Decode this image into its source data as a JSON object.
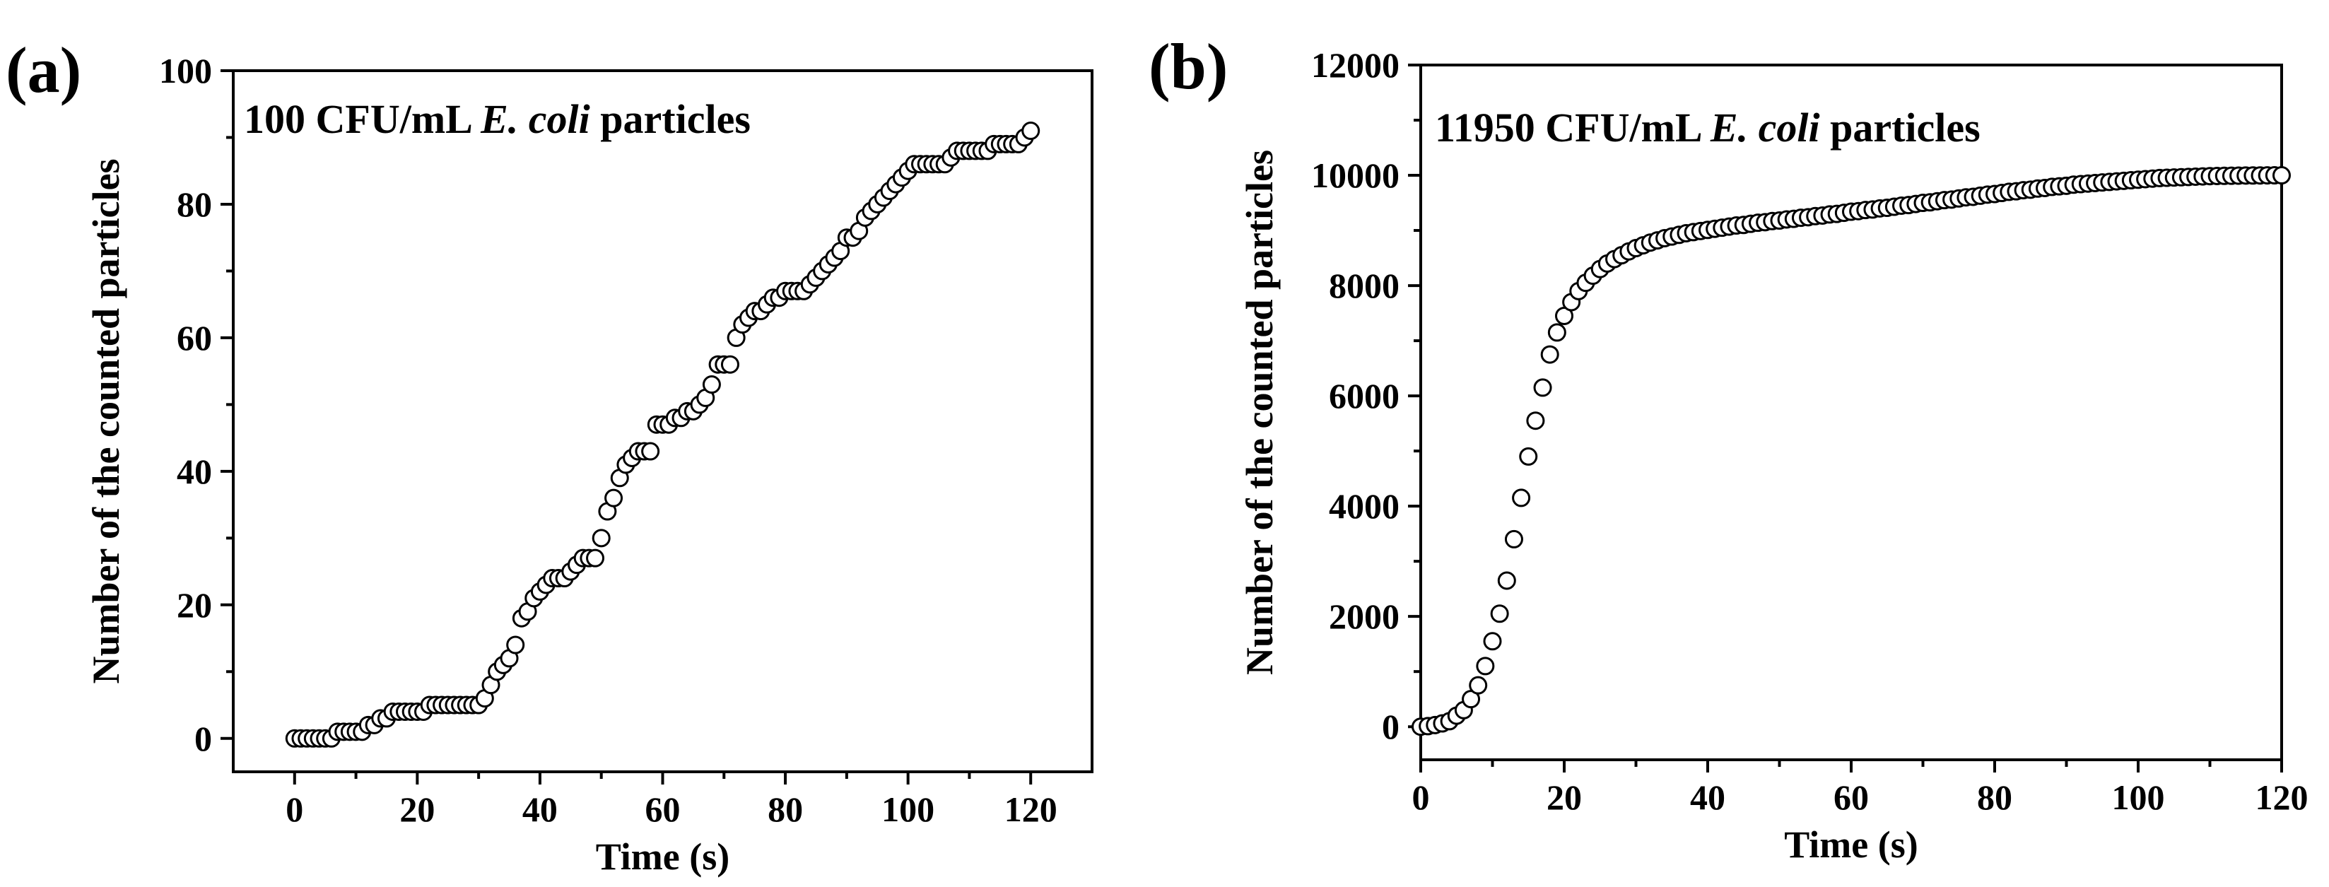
{
  "chart_data": [
    {
      "type": "scatter",
      "panel_label": "(a)",
      "annotation": {
        "prefix": "100 CFU/mL ",
        "italic": "E. coli",
        "suffix": " particles"
      },
      "xlabel": "Time (s)",
      "ylabel": "Number of the counted particles",
      "xlim": [
        -10,
        130
      ],
      "ylim": [
        -5,
        100
      ],
      "xticks": [
        0,
        20,
        40,
        60,
        80,
        100,
        120
      ],
      "yticks": [
        0,
        20,
        40,
        60,
        80,
        100
      ],
      "xtick_labels": [
        "0",
        "20",
        "40",
        "60",
        "80",
        "100",
        "120"
      ],
      "ytick_labels": [
        "0",
        "20",
        "40",
        "60",
        "80",
        "100"
      ],
      "x": [
        0,
        1,
        2,
        3,
        4,
        5,
        6,
        7,
        8,
        9,
        10,
        11,
        12,
        13,
        14,
        15,
        16,
        17,
        18,
        19,
        20,
        21,
        22,
        23,
        24,
        25,
        26,
        27,
        28,
        29,
        30,
        31,
        32,
        33,
        34,
        35,
        36,
        37,
        38,
        39,
        40,
        41,
        42,
        43,
        44,
        45,
        46,
        47,
        48,
        49,
        50,
        51,
        52,
        53,
        54,
        55,
        56,
        57,
        58,
        59,
        60,
        61,
        62,
        63,
        64,
        65,
        66,
        67,
        68,
        69,
        70,
        71,
        72,
        73,
        74,
        75,
        76,
        77,
        78,
        79,
        80,
        81,
        82,
        83,
        84,
        85,
        86,
        87,
        88,
        89,
        90,
        91,
        92,
        93,
        94,
        95,
        96,
        97,
        98,
        99,
        100,
        101,
        102,
        103,
        104,
        105,
        106,
        107,
        108,
        109,
        110,
        111,
        112,
        113,
        114,
        115,
        116,
        117,
        118,
        119,
        120
      ],
      "y": [
        0,
        0,
        0,
        0,
        0,
        0,
        0,
        1,
        1,
        1,
        1,
        1,
        2,
        2,
        3,
        3,
        4,
        4,
        4,
        4,
        4,
        4,
        5,
        5,
        5,
        5,
        5,
        5,
        5,
        5,
        5,
        6,
        8,
        10,
        11,
        12,
        14,
        18,
        19,
        21,
        22,
        23,
        24,
        24,
        24,
        25,
        26,
        27,
        27,
        27,
        30,
        34,
        36,
        39,
        41,
        42,
        43,
        43,
        43,
        47,
        47,
        47,
        48,
        48,
        49,
        49,
        50,
        51,
        53,
        56,
        56,
        56,
        60,
        62,
        63,
        64,
        64,
        65,
        66,
        66,
        67,
        67,
        67,
        67,
        68,
        69,
        70,
        71,
        72,
        73,
        75,
        75,
        76,
        78,
        79,
        80,
        81,
        82,
        83,
        84,
        85,
        86,
        86,
        86,
        86,
        86,
        86,
        87,
        88,
        88,
        88,
        88,
        88,
        88,
        89,
        89,
        89,
        89,
        89,
        90,
        91
      ]
    },
    {
      "type": "scatter",
      "panel_label": "(b)",
      "annotation": {
        "prefix": "11950 CFU/mL ",
        "italic": "E. coli",
        "suffix": " particles"
      },
      "xlabel": "Time (s)",
      "ylabel": "Number of the counted particles",
      "xlim": [
        0,
        120
      ],
      "ylim": [
        -600,
        12000
      ],
      "xticks": [
        0,
        20,
        40,
        60,
        80,
        100,
        120
      ],
      "yticks": [
        0,
        2000,
        4000,
        6000,
        8000,
        10000,
        12000
      ],
      "xtick_labels": [
        "0",
        "20",
        "40",
        "60",
        "80",
        "100",
        "120"
      ],
      "ytick_labels": [
        "0",
        "2000",
        "4000",
        "6000",
        "8000",
        "10000",
        "12000"
      ],
      "x": [
        0,
        1,
        2,
        3,
        4,
        5,
        6,
        7,
        8,
        9,
        10,
        11,
        12,
        13,
        14,
        15,
        16,
        17,
        18,
        19,
        20,
        21,
        22,
        23,
        24,
        25,
        26,
        27,
        28,
        29,
        30,
        31,
        32,
        33,
        34,
        35,
        36,
        37,
        38,
        39,
        40,
        41,
        42,
        43,
        44,
        45,
        46,
        47,
        48,
        49,
        50,
        51,
        52,
        53,
        54,
        55,
        56,
        57,
        58,
        59,
        60,
        61,
        62,
        63,
        64,
        65,
        66,
        67,
        68,
        69,
        70,
        71,
        72,
        73,
        74,
        75,
        76,
        77,
        78,
        79,
        80,
        81,
        82,
        83,
        84,
        85,
        86,
        87,
        88,
        89,
        90,
        91,
        92,
        93,
        94,
        95,
        96,
        97,
        98,
        99,
        100,
        101,
        102,
        103,
        104,
        105,
        106,
        107,
        108,
        109,
        110,
        111,
        112,
        113,
        114,
        115,
        116,
        117,
        118,
        119,
        120
      ],
      "y": [
        0,
        10,
        30,
        60,
        100,
        200,
        300,
        500,
        750,
        1100,
        1550,
        2050,
        2650,
        3400,
        4150,
        4900,
        5550,
        6150,
        6750,
        7150,
        7450,
        7700,
        7900,
        8050,
        8180,
        8300,
        8400,
        8480,
        8550,
        8620,
        8680,
        8730,
        8780,
        8820,
        8860,
        8890,
        8920,
        8950,
        8970,
        8990,
        9010,
        9030,
        9050,
        9070,
        9090,
        9100,
        9120,
        9140,
        9150,
        9170,
        9180,
        9200,
        9210,
        9230,
        9240,
        9260,
        9270,
        9290,
        9300,
        9320,
        9340,
        9350,
        9370,
        9380,
        9400,
        9410,
        9430,
        9450,
        9460,
        9480,
        9500,
        9510,
        9530,
        9550,
        9560,
        9580,
        9600,
        9610,
        9630,
        9650,
        9660,
        9680,
        9700,
        9710,
        9730,
        9740,
        9760,
        9770,
        9790,
        9800,
        9810,
        9830,
        9840,
        9850,
        9860,
        9870,
        9880,
        9890,
        9900,
        9910,
        9920,
        9930,
        9940,
        9950,
        9955,
        9960,
        9965,
        9970,
        9975,
        9980,
        9985,
        9988,
        9990,
        9992,
        9994,
        9996,
        9997,
        9998,
        9999,
        10000,
        10000
      ]
    }
  ]
}
